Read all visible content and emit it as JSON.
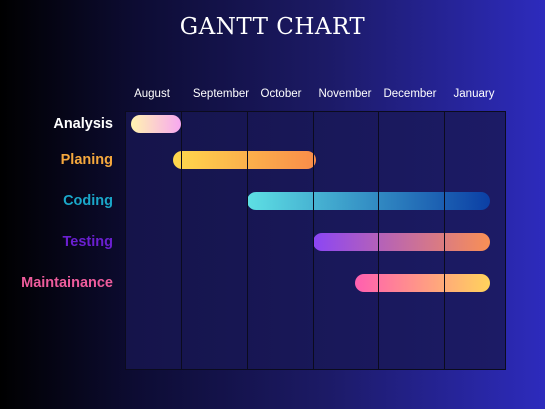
{
  "chart_data": {
    "type": "gantt",
    "title": "GANTT CHART",
    "months": [
      "August",
      "September",
      "October",
      "November",
      "December",
      "January"
    ],
    "tasks": [
      {
        "name": "Analysis",
        "start": 0.1,
        "end": 1.0,
        "label_color": "#ffffff",
        "colors": [
          "#fff3b0",
          "#f7a8f0"
        ]
      },
      {
        "name": "Planing",
        "start": 0.85,
        "end": 3.05,
        "label_color": "#f6a83d",
        "colors": [
          "#ffd84d",
          "#f98c4a"
        ]
      },
      {
        "name": "Coding",
        "start": 2.0,
        "end": 5.75,
        "label_color": "#1aa7c9",
        "colors": [
          "#5ee0e4",
          "#0b3fa5"
        ]
      },
      {
        "name": "Testing",
        "start": 3.0,
        "end": 5.75,
        "label_color": "#6a1fd0",
        "colors": [
          "#8b45f5",
          "#f99055"
        ]
      },
      {
        "name": "Maintainance",
        "start": 3.65,
        "end": 5.75,
        "label_color": "#ee5c9c",
        "colors": [
          "#ff5fb0",
          "#ffd35c"
        ]
      }
    ]
  }
}
